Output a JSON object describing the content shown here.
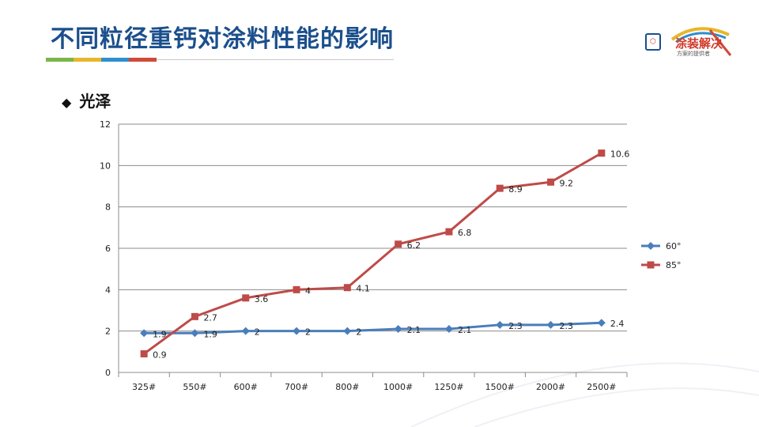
{
  "slide": {
    "title": "不同粒径重钙对涂料性能的影响",
    "accent_colors": [
      "#7ab648",
      "#e8b62c",
      "#2e8fd0",
      "#d04a3a"
    ],
    "section_heading": "光泽",
    "section_bullet": "◆"
  },
  "logo": {
    "text": "涂装解决",
    "subtext": "方案的提供者"
  },
  "chart_data": {
    "type": "line",
    "categories": [
      "325#",
      "550#",
      "600#",
      "700#",
      "800#",
      "1000#",
      "1250#",
      "1500#",
      "2000#",
      "2500#"
    ],
    "ylim": [
      0,
      12
    ],
    "yticks": [
      0,
      2,
      4,
      6,
      8,
      10,
      12
    ],
    "grid": true,
    "legend": "right",
    "series": [
      {
        "name": "60°",
        "color": "#4a7ebb",
        "marker": "diamond",
        "values": [
          1.9,
          1.9,
          2,
          2,
          2,
          2.1,
          2.1,
          2.3,
          2.3,
          2.4
        ]
      },
      {
        "name": "85°",
        "color": "#be4b48",
        "marker": "square",
        "values": [
          0.9,
          2.7,
          3.6,
          4,
          4.1,
          6.2,
          6.8,
          8.9,
          9.2,
          10.6
        ]
      }
    ]
  }
}
